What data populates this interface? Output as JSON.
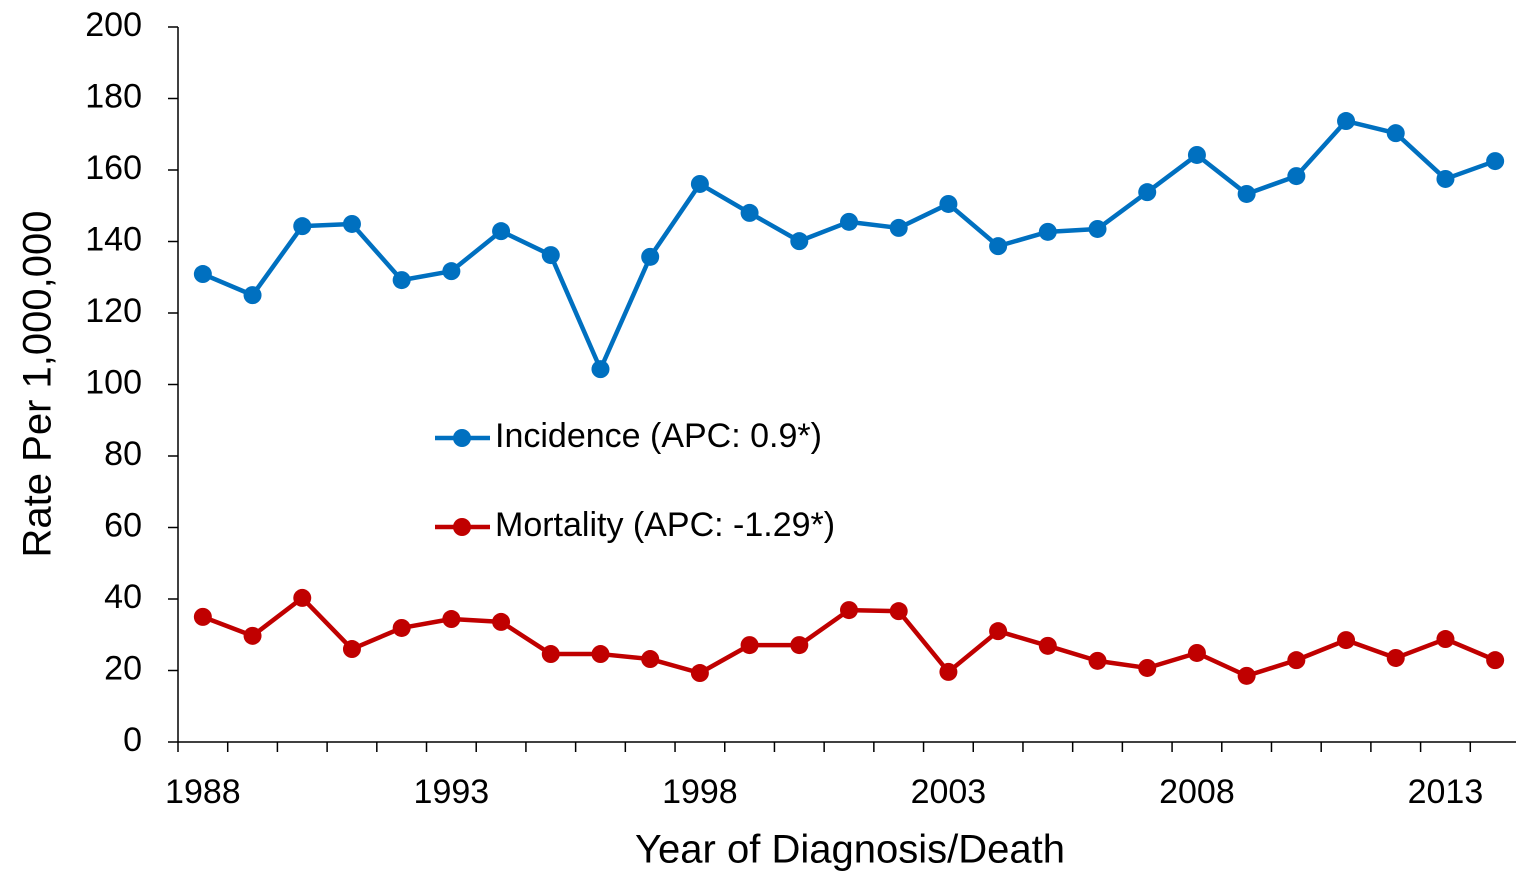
{
  "chart_data": {
    "type": "line",
    "xlabel": "Year of Diagnosis/Death",
    "ylabel": "Rate Per 1,000,000",
    "x": [
      1988,
      1989,
      1990,
      1991,
      1992,
      1993,
      1994,
      1995,
      1996,
      1997,
      1998,
      1999,
      2000,
      2001,
      2002,
      2003,
      2004,
      2005,
      2006,
      2007,
      2008,
      2009,
      2010,
      2011,
      2012,
      2013,
      2014
    ],
    "series": [
      {
        "name": "Incidence (APC: 0.9*)",
        "color": "#0070c0",
        "values": [
          130.9,
          125.0,
          144.3,
          144.9,
          129.2,
          131.7,
          142.9,
          136.2,
          104.3,
          135.7,
          156.1,
          148.0,
          140.1,
          145.5,
          143.8,
          150.5,
          138.7,
          142.7,
          143.5,
          153.8,
          164.2,
          153.3,
          158.3,
          173.7,
          170.3,
          157.5,
          162.5
        ]
      },
      {
        "name": "Mortality (APC: -1.29*)",
        "color": "#c00000",
        "values": [
          35.0,
          29.7,
          40.3,
          26.0,
          31.9,
          34.4,
          33.6,
          24.6,
          24.6,
          23.2,
          19.3,
          27.1,
          27.1,
          36.9,
          36.6,
          19.6,
          31.0,
          26.9,
          22.7,
          20.7,
          24.9,
          18.5,
          22.9,
          28.5,
          23.5,
          28.8,
          22.9
        ]
      }
    ],
    "xlim": [
      1987.5,
      2014.5
    ],
    "xticks": [
      1988,
      1993,
      1998,
      2003,
      2008,
      2013
    ],
    "ylim": [
      0,
      200
    ],
    "yticks": [
      0,
      20,
      40,
      60,
      80,
      100,
      120,
      140,
      160,
      180,
      200
    ],
    "grid": false
  }
}
